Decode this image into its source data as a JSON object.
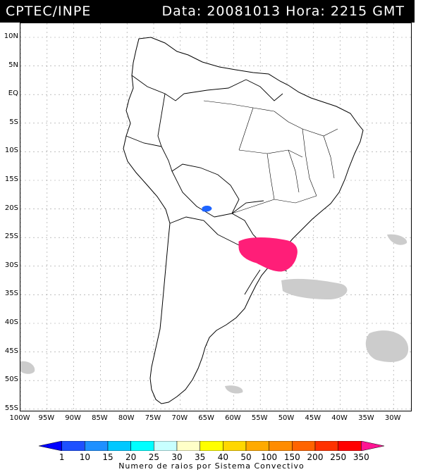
{
  "header": {
    "left": "CPTEC/INPE",
    "right": "Data: 20081013 Hora: 2215 GMT"
  },
  "map": {
    "lat_labels": [
      "10N",
      "5N",
      "EQ",
      "5S",
      "10S",
      "15S",
      "20S",
      "25S",
      "30S",
      "35S",
      "40S",
      "45S",
      "50S",
      "55S"
    ],
    "lon_labels": [
      "100W",
      "95W",
      "90W",
      "85W",
      "80W",
      "75W",
      "70W",
      "65W",
      "60W",
      "55W",
      "50W",
      "45W",
      "40W",
      "35W",
      "30W"
    ]
  },
  "legend": {
    "title": "Numero de raios por Sistema Convectivo",
    "ticks": [
      "1",
      "10",
      "15",
      "20",
      "25",
      "30",
      "35",
      "40",
      "50",
      "100",
      "150",
      "200",
      "250",
      "350"
    ],
    "colors": [
      "#0000ff",
      "#1e50ff",
      "#1e90ff",
      "#00c8ff",
      "#00ffff",
      "#c8ffff",
      "#ffffc8",
      "#ffff00",
      "#ffd700",
      "#ffaa00",
      "#ff8c00",
      "#ff6400",
      "#ff3200",
      "#ff0000",
      "#ff1493"
    ]
  },
  "features": {
    "land_color": "#ffffff",
    "cloud_color": "#cccccc",
    "storm_color_high": "#ff1e78",
    "storm_color_low": "#1e64ff"
  }
}
